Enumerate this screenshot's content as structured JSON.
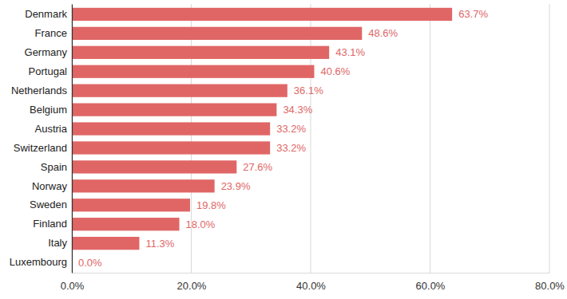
{
  "chart_data": {
    "type": "bar",
    "orientation": "horizontal",
    "categories": [
      "Denmark",
      "France",
      "Germany",
      "Portugal",
      "Netherlands",
      "Belgium",
      "Austria",
      "Switzerland",
      "Spain",
      "Norway",
      "Sweden",
      "Finland",
      "Italy",
      "Luxembourg"
    ],
    "values": [
      63.7,
      48.6,
      43.1,
      40.6,
      36.1,
      34.3,
      33.2,
      33.2,
      27.6,
      23.9,
      19.8,
      18.0,
      11.3,
      0.0
    ],
    "value_labels": [
      "63.7%",
      "48.6%",
      "43.1%",
      "40.6%",
      "36.1%",
      "34.3%",
      "33.2%",
      "33.2%",
      "27.6%",
      "23.9%",
      "19.8%",
      "18.0%",
      "11.3%",
      "0.0%"
    ],
    "data_labels": true,
    "color": "#e06666",
    "xlim": [
      0,
      80
    ],
    "xticks": [
      {
        "value": 0,
        "label": "0.0%"
      },
      {
        "value": 20,
        "label": "20.0%"
      },
      {
        "value": 40,
        "label": "40.0%"
      },
      {
        "value": 60,
        "label": "60.0%"
      },
      {
        "value": 80,
        "label": "80.0%"
      }
    ],
    "grid": true
  }
}
